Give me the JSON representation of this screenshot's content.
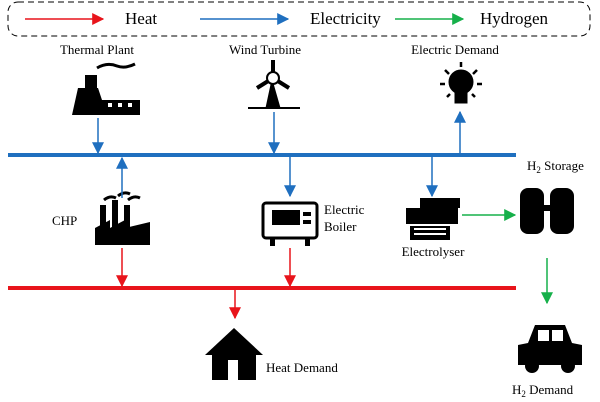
{
  "legend": [
    {
      "label": "Heat",
      "color": "#e8141b"
    },
    {
      "label": "Electricity",
      "color": "#1f6fbf"
    },
    {
      "label": "Hydrogen",
      "color": "#16b04a"
    }
  ],
  "nodes": {
    "thermal_plant": {
      "label": "Thermal Plant"
    },
    "wind_turbine": {
      "label": "Wind Turbine"
    },
    "electric_demand": {
      "label": "Electric Demand"
    },
    "chp": {
      "label": "CHP"
    },
    "electric_boiler": {
      "label_line1": "Electric",
      "label_line2": "Boiler"
    },
    "electrolyser": {
      "label": "Electrolyser"
    },
    "h2_storage": {
      "label_main": "H",
      "label_sub": "2",
      "label_rest": " Storage"
    },
    "heat_demand": {
      "label": "Heat Demand"
    },
    "h2_demand": {
      "label_main": "H",
      "label_sub": "2",
      "label_rest": " Demand"
    }
  }
}
